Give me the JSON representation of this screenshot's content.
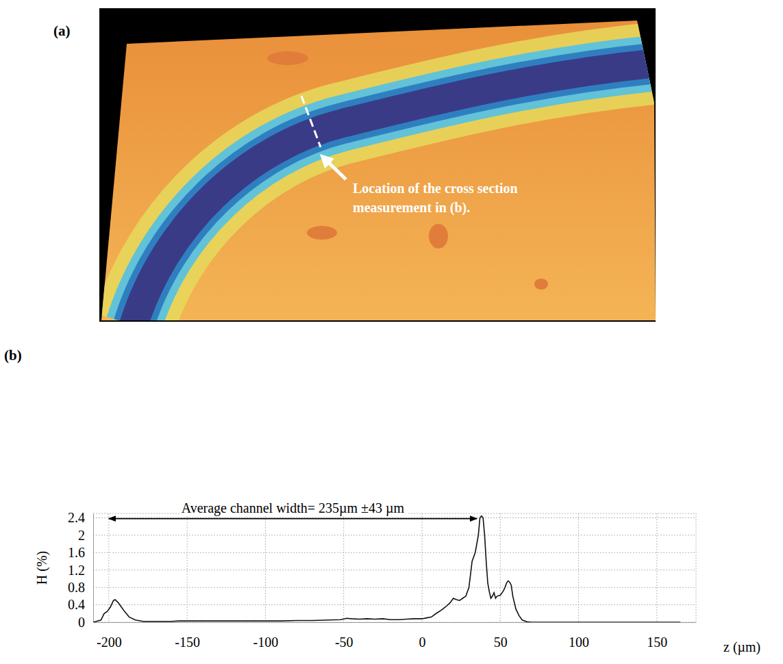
{
  "panel_a": {
    "label": "(a)",
    "annotation": "Location of the cross section measurement in (b)."
  },
  "chart_data": {
    "type": "line",
    "label": "(b)",
    "x_label": "z (µm)",
    "y_label": "H (%)",
    "color": "#111111",
    "grid": true,
    "xlim": [
      -210,
      175
    ],
    "ylim": [
      0,
      2.5
    ],
    "xticks": [
      -200,
      -150,
      -100,
      -50,
      0,
      50,
      100,
      150
    ],
    "yticks": [
      0,
      0.4,
      0.8,
      1.2,
      1.6,
      2,
      2.4
    ],
    "x": [
      -210,
      -205,
      -203,
      -201,
      -199,
      -197,
      -196,
      -194,
      -192,
      -190,
      -187,
      -183,
      -178,
      -170,
      -160,
      -155,
      -150,
      -140,
      -130,
      -120,
      -110,
      -100,
      -90,
      -80,
      -70,
      -60,
      -52,
      -48,
      -45,
      -40,
      -35,
      -30,
      -25,
      -20,
      -15,
      -10,
      -5,
      0,
      3,
      6,
      9,
      12,
      15,
      18,
      20,
      22,
      24,
      26,
      28,
      30,
      32,
      34,
      36,
      37,
      38,
      39,
      40,
      41,
      42,
      43,
      44,
      45,
      46,
      47,
      48,
      50,
      52,
      53,
      54,
      55,
      56,
      57,
      58,
      60,
      62,
      64,
      67,
      70,
      100,
      150,
      165
    ],
    "values": [
      0,
      0.05,
      0.2,
      0.25,
      0.35,
      0.5,
      0.52,
      0.45,
      0.35,
      0.25,
      0.12,
      0.05,
      0.02,
      0.02,
      0.02,
      0.03,
      0.03,
      0.03,
      0.03,
      0.03,
      0.03,
      0.03,
      0.03,
      0.04,
      0.04,
      0.05,
      0.06,
      0.09,
      0.08,
      0.07,
      0.08,
      0.07,
      0.08,
      0.06,
      0.06,
      0.07,
      0.08,
      0.08,
      0.1,
      0.12,
      0.2,
      0.27,
      0.35,
      0.45,
      0.55,
      0.52,
      0.5,
      0.55,
      0.6,
      0.8,
      1.4,
      1.6,
      2.0,
      2.4,
      2.44,
      2.4,
      2.0,
      1.4,
      0.9,
      0.7,
      0.55,
      0.6,
      0.68,
      0.55,
      0.6,
      0.62,
      0.72,
      0.8,
      0.9,
      0.95,
      0.92,
      0.85,
      0.6,
      0.3,
      0.15,
      0.05,
      0.01,
      0,
      0,
      0,
      0
    ],
    "annotations": [
      {
        "text": "Average channel width= 235µm ±43 µm",
        "x": [
          -200,
          35
        ],
        "y": 2.38
      }
    ]
  }
}
